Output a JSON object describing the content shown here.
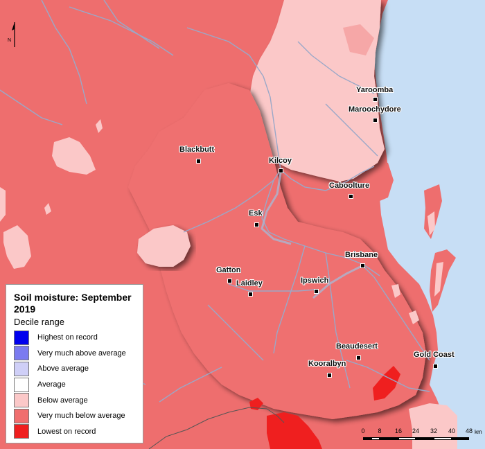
{
  "legend": {
    "title": "Soil moisture: September 2019",
    "subtitle": "Decile range",
    "items": [
      {
        "label": "Highest on record",
        "color": "#0000ee"
      },
      {
        "label": "Very much above average",
        "color": "#7b7bf0"
      },
      {
        "label": "Above average",
        "color": "#cfcff7"
      },
      {
        "label": "Average",
        "color": "#ffffff"
      },
      {
        "label": "Below average",
        "color": "#fbc8c8"
      },
      {
        "label": "Very much below average",
        "color": "#f06e6e"
      },
      {
        "label": "Lowest on record",
        "color": "#ef1f1f"
      }
    ]
  },
  "north_arrow": {
    "label": "N"
  },
  "scalebar": {
    "ticks": [
      "0",
      "8",
      "16",
      "24",
      "32",
      "40",
      "48"
    ],
    "unit": "km"
  },
  "towns": [
    {
      "name": "Yaroomba"
    },
    {
      "name": "Maroochydore"
    },
    {
      "name": "Blackbutt"
    },
    {
      "name": "Kilcoy"
    },
    {
      "name": "Caboolture"
    },
    {
      "name": "Esk"
    },
    {
      "name": "Brisbane"
    },
    {
      "name": "Gatton"
    },
    {
      "name": "Laidley"
    },
    {
      "name": "Ipswich"
    },
    {
      "name": "Beaudesert"
    },
    {
      "name": "Gold Coast"
    },
    {
      "name": "Kooralbyn"
    }
  ],
  "colors": {
    "ocean": "#c7def5",
    "very_much_below": "#f06e6e",
    "below": "#fbc8c8",
    "lowest": "#ef1f1f",
    "rivers": "#9aa8c8",
    "boundary": "#555555"
  }
}
